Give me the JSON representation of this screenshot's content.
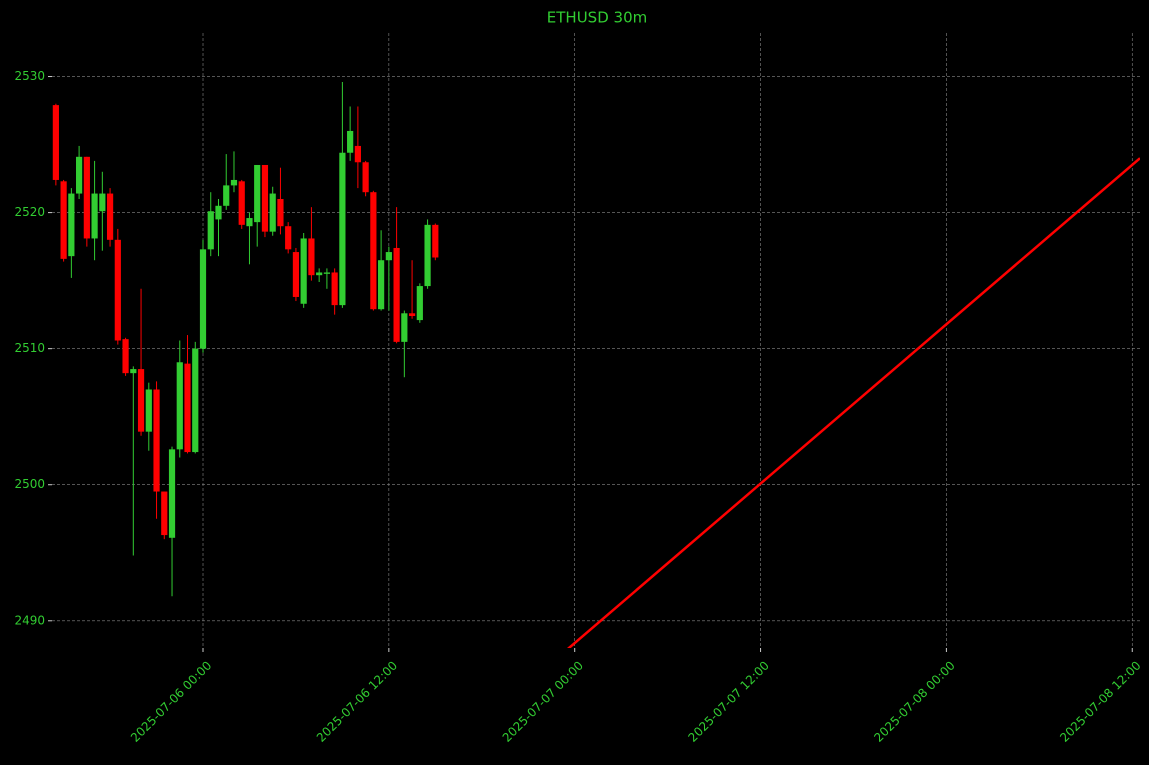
{
  "chart_data": {
    "type": "candlestick",
    "title": "ETHUSD 30m",
    "x": [
      "2025-07-05 14:30",
      "2025-07-05 15:00",
      "2025-07-05 15:30",
      "2025-07-05 16:00",
      "2025-07-05 16:30",
      "2025-07-05 17:00",
      "2025-07-05 17:30",
      "2025-07-05 18:00",
      "2025-07-05 18:30",
      "2025-07-05 19:00",
      "2025-07-05 19:30",
      "2025-07-05 20:00",
      "2025-07-05 20:30",
      "2025-07-05 21:00",
      "2025-07-05 21:30",
      "2025-07-05 22:00",
      "2025-07-05 22:30",
      "2025-07-05 23:00",
      "2025-07-05 23:30",
      "2025-07-06 00:00",
      "2025-07-06 00:30",
      "2025-07-06 01:00",
      "2025-07-06 01:30",
      "2025-07-06 02:00",
      "2025-07-06 02:30",
      "2025-07-06 03:00",
      "2025-07-06 03:30",
      "2025-07-06 04:00",
      "2025-07-06 04:30",
      "2025-07-06 05:00",
      "2025-07-06 05:30",
      "2025-07-06 06:00",
      "2025-07-06 06:30",
      "2025-07-06 07:00",
      "2025-07-06 07:30",
      "2025-07-06 08:00",
      "2025-07-06 08:30",
      "2025-07-06 09:00",
      "2025-07-06 09:30",
      "2025-07-06 10:00",
      "2025-07-06 10:30",
      "2025-07-06 11:00",
      "2025-07-06 11:30",
      "2025-07-06 12:00",
      "2025-07-06 12:30",
      "2025-07-06 13:00",
      "2025-07-06 13:30",
      "2025-07-06 14:00",
      "2025-07-06 14:30",
      "2025-07-06 15:00"
    ],
    "open": [
      2527.9,
      2522.3,
      2516.8,
      2521.4,
      2524.1,
      2518.1,
      2520.1,
      2521.4,
      2518.0,
      2510.7,
      2508.2,
      2508.5,
      2503.9,
      2507.0,
      2499.5,
      2496.1,
      2502.6,
      2508.9,
      2502.4,
      2510.0,
      2517.3,
      2519.5,
      2520.5,
      2522.0,
      2522.3,
      2519.0,
      2519.3,
      2523.5,
      2518.6,
      2521.0,
      2519.0,
      2517.1,
      2513.3,
      2518.1,
      2515.4,
      2515.5,
      2515.6,
      2513.2,
      2524.4,
      2524.9,
      2523.7,
      2521.5,
      2512.9,
      2516.5,
      2517.4,
      2510.5,
      2512.6,
      2512.1,
      2514.6,
      2519.1
    ],
    "high": [
      2528.0,
      2522.4,
      2521.8,
      2524.9,
      2524.1,
      2523.8,
      2523.0,
      2521.8,
      2518.8,
      2510.8,
      2508.7,
      2514.4,
      2507.5,
      2507.6,
      2499.5,
      2502.8,
      2510.6,
      2511.0,
      2510.5,
      2518.0,
      2521.5,
      2521.0,
      2524.3,
      2524.5,
      2522.4,
      2520.0,
      2523.5,
      2523.5,
      2521.9,
      2523.3,
      2519.3,
      2517.4,
      2518.5,
      2520.4,
      2515.9,
      2515.9,
      2515.9,
      2529.6,
      2527.8,
      2527.8,
      2523.8,
      2521.6,
      2518.7,
      2517.5,
      2520.4,
      2512.8,
      2516.5,
      2514.8,
      2519.5,
      2519.2
    ],
    "low": [
      2522.0,
      2516.4,
      2515.2,
      2521.0,
      2517.5,
      2516.5,
      2517.2,
      2517.5,
      2510.3,
      2508.0,
      2494.8,
      2503.6,
      2502.5,
      2497.5,
      2496.0,
      2491.8,
      2502.0,
      2502.3,
      2502.3,
      2509.7,
      2516.8,
      2516.8,
      2520.2,
      2521.5,
      2518.8,
      2516.2,
      2517.5,
      2518.2,
      2518.3,
      2518.4,
      2517.0,
      2513.5,
      2513.0,
      2515.0,
      2514.9,
      2514.4,
      2512.5,
      2513.0,
      2523.8,
      2521.8,
      2521.2,
      2512.8,
      2512.8,
      2512.8,
      2510.4,
      2507.9,
      2512.2,
      2511.9,
      2514.4,
      2516.5
    ],
    "close": [
      2522.4,
      2516.6,
      2521.4,
      2524.1,
      2518.1,
      2521.4,
      2521.4,
      2518.0,
      2510.6,
      2508.2,
      2508.5,
      2503.9,
      2507.0,
      2499.5,
      2496.3,
      2502.6,
      2509.0,
      2502.4,
      2510.0,
      2517.3,
      2520.1,
      2520.5,
      2522.0,
      2522.4,
      2519.1,
      2519.6,
      2523.5,
      2518.6,
      2521.4,
      2519.0,
      2517.3,
      2513.8,
      2518.1,
      2515.4,
      2515.6,
      2515.6,
      2513.2,
      2524.4,
      2526.0,
      2523.7,
      2521.5,
      2512.9,
      2516.5,
      2517.1,
      2510.5,
      2512.6,
      2512.4,
      2514.6,
      2519.1,
      2516.7
    ],
    "up_color": "#32cd32",
    "down_color": "#ff0000",
    "overlay": {
      "type": "line",
      "color": "#ff0000",
      "x": [
        "2025-07-06 22:30",
        "2025-07-08 12:30"
      ],
      "values": [
        2486.9,
        2524.0
      ]
    },
    "xlim": [
      "2025-07-05 14:15",
      "2025-07-08 12:30"
    ],
    "xticks": [
      "2025-07-06 00:00",
      "2025-07-06 12:00",
      "2025-07-07 00:00",
      "2025-07-07 12:00",
      "2025-07-08 00:00",
      "2025-07-08 12:00"
    ],
    "ylim": [
      2488.0,
      2533.2
    ],
    "yticks": [
      2490,
      2500,
      2510,
      2520,
      2530
    ],
    "grid": true
  }
}
